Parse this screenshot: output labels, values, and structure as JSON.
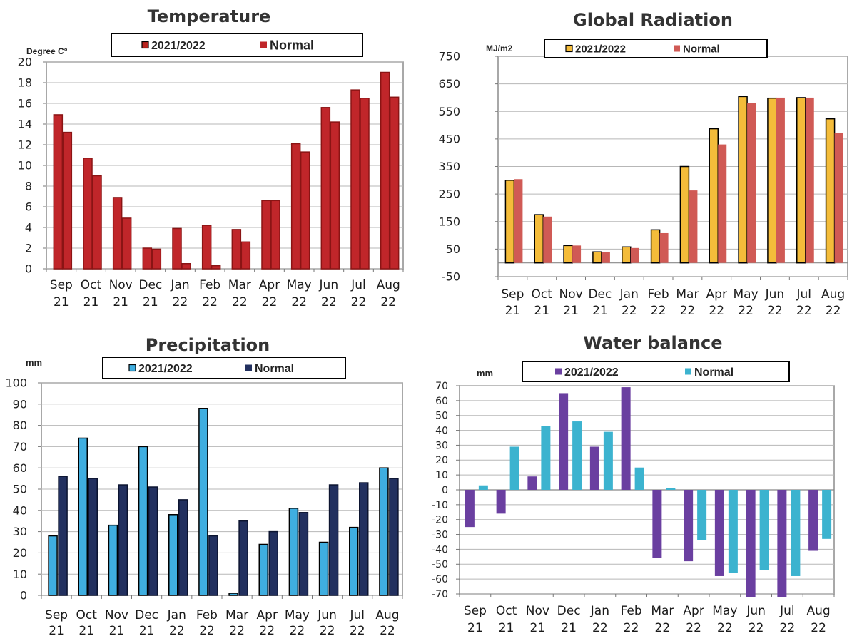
{
  "chart_data": [
    {
      "type": "bar",
      "title": "Temperature",
      "ylabel": "Degree C°",
      "ylim": [
        0,
        20
      ],
      "yticks": [
        0,
        2,
        4,
        6,
        8,
        10,
        12,
        14,
        16,
        18,
        20
      ],
      "grid": true,
      "legend_position": "top",
      "categories": [
        [
          "Sep",
          "21"
        ],
        [
          "Oct",
          "21"
        ],
        [
          "Nov",
          "21"
        ],
        [
          "Dec",
          "21"
        ],
        [
          "Jan",
          "22"
        ],
        [
          "Feb",
          "22"
        ],
        [
          "Mar",
          "22"
        ],
        [
          "Apr",
          "22"
        ],
        [
          "May",
          "22"
        ],
        [
          "Jun",
          "22"
        ],
        [
          "Jul",
          "22"
        ],
        [
          "Aug",
          "22"
        ]
      ],
      "series": [
        {
          "name": "2021/2022",
          "color": "#c0262a",
          "values": [
            14.9,
            10.7,
            6.9,
            2.0,
            3.9,
            4.2,
            3.8,
            6.6,
            12.1,
            15.6,
            17.3,
            19.0
          ]
        },
        {
          "name": "Normal",
          "color": "#c0262a",
          "values": [
            13.2,
            9.0,
            4.9,
            1.9,
            0.5,
            0.3,
            2.6,
            6.6,
            11.3,
            14.2,
            16.5,
            16.6
          ]
        }
      ]
    },
    {
      "type": "bar",
      "title": "Global Radiation",
      "ylabel": "MJ/m2",
      "ylim": [
        -50,
        750
      ],
      "yticks": [
        -50,
        50,
        150,
        250,
        350,
        450,
        550,
        650,
        750
      ],
      "grid": true,
      "legend_position": "top",
      "categories": [
        [
          "Sep",
          "21"
        ],
        [
          "Oct",
          "21"
        ],
        [
          "Nov",
          "21"
        ],
        [
          "Dec",
          "21"
        ],
        [
          "Jan",
          "22"
        ],
        [
          "Feb",
          "22"
        ],
        [
          "Mar",
          "22"
        ],
        [
          "Apr",
          "22"
        ],
        [
          "May",
          "22"
        ],
        [
          "Jun",
          "22"
        ],
        [
          "Jul",
          "22"
        ],
        [
          "Aug",
          "22"
        ]
      ],
      "series": [
        {
          "name": "2021/2022",
          "color": "#f4bc3a",
          "values": [
            300,
            175,
            63,
            40,
            58,
            120,
            350,
            487,
            604,
            598,
            600,
            523
          ]
        },
        {
          "name": "Normal",
          "color": "#d05a55",
          "values": [
            304,
            168,
            63,
            38,
            54,
            108,
            263,
            430,
            580,
            600,
            600,
            473
          ]
        }
      ]
    },
    {
      "type": "bar",
      "title": "Precipitation",
      "ylabel": "mm",
      "ylim": [
        0,
        100
      ],
      "yticks": [
        0,
        10,
        20,
        30,
        40,
        50,
        60,
        70,
        80,
        90,
        100
      ],
      "grid": true,
      "legend_position": "top",
      "categories": [
        [
          "Sep",
          "21"
        ],
        [
          "Oct",
          "21"
        ],
        [
          "Nov",
          "21"
        ],
        [
          "Dec",
          "21"
        ],
        [
          "Jan",
          "22"
        ],
        [
          "Feb",
          "22"
        ],
        [
          "Mar",
          "22"
        ],
        [
          "Apr",
          "22"
        ],
        [
          "May",
          "22"
        ],
        [
          "Jun",
          "22"
        ],
        [
          "Jul",
          "22"
        ],
        [
          "Aug",
          "22"
        ]
      ],
      "series": [
        {
          "name": "2021/2022",
          "color": "#3faee0",
          "values": [
            28,
            74,
            33,
            70,
            38,
            88,
            1,
            24,
            41,
            25,
            32,
            60
          ]
        },
        {
          "name": "Normal",
          "color": "#22305f",
          "values": [
            56,
            55,
            52,
            51,
            45,
            28,
            35,
            30,
            39,
            52,
            53,
            55
          ]
        }
      ]
    },
    {
      "type": "bar",
      "title": "Water balance",
      "ylabel": "mm",
      "ylim": [
        -70,
        70
      ],
      "yticks": [
        -70,
        -60,
        -50,
        -40,
        -30,
        -20,
        -10,
        0,
        10,
        20,
        30,
        40,
        50,
        60,
        70
      ],
      "grid": true,
      "legend_position": "top",
      "categories": [
        [
          "Sep",
          "21"
        ],
        [
          "Oct",
          "21"
        ],
        [
          "Nov",
          "21"
        ],
        [
          "Dec",
          "21"
        ],
        [
          "Jan",
          "22"
        ],
        [
          "Feb",
          "22"
        ],
        [
          "Mar",
          "22"
        ],
        [
          "Apr",
          "22"
        ],
        [
          "May",
          "22"
        ],
        [
          "Jun",
          "22"
        ],
        [
          "Jul",
          "22"
        ],
        [
          "Aug",
          "22"
        ]
      ],
      "series": [
        {
          "name": "2021/2022",
          "color": "#6a3fa0",
          "values": [
            -25,
            -16,
            9,
            65,
            29,
            69,
            -46,
            -48,
            -58,
            -72,
            -72,
            -41
          ]
        },
        {
          "name": "Normal",
          "color": "#3cb3cf",
          "values": [
            3,
            29,
            43,
            46,
            39,
            15,
            1,
            -34,
            -56,
            -54,
            -58,
            -33
          ]
        }
      ]
    }
  ]
}
